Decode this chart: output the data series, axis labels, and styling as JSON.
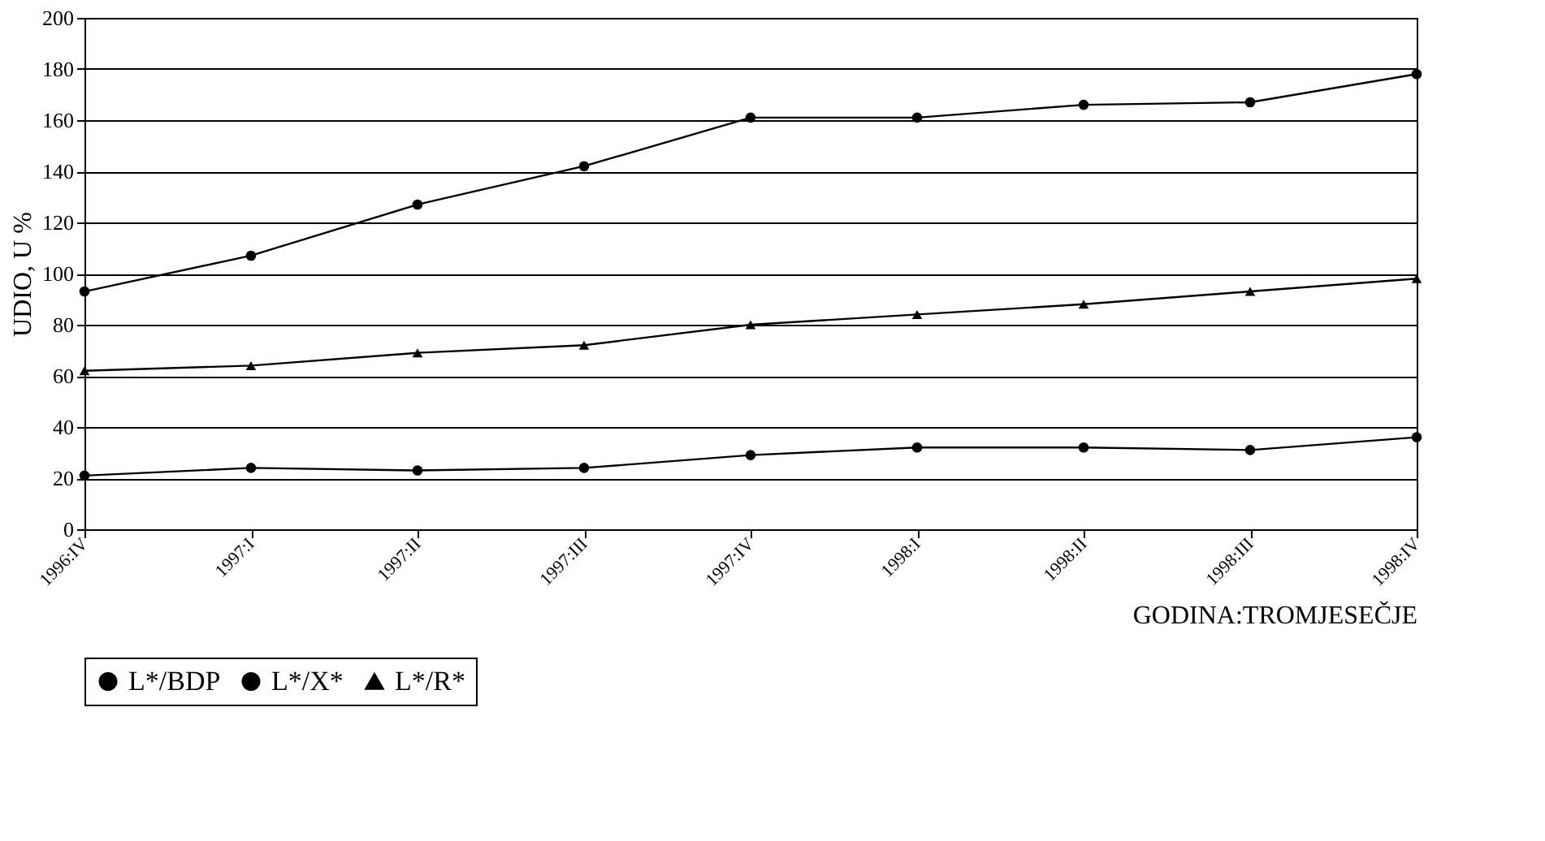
{
  "chart_data": {
    "type": "line",
    "xlabel": "GODINA:TROMJESEČJE",
    "ylabel": "UDIO, U %",
    "categories": [
      "1996:IV",
      "1997:I",
      "1997:II",
      "1997:III",
      "1997:IV",
      "1998:I",
      "1998:II",
      "1998:III",
      "1998:IV"
    ],
    "series": [
      {
        "name": "L*/BDP",
        "color": "#000000",
        "marker": "circle",
        "values": [
          21,
          24,
          23,
          24,
          29,
          32,
          32,
          31,
          36
        ]
      },
      {
        "name": "L*/X*",
        "color": "#000000",
        "marker": "circle",
        "values": [
          93,
          107,
          127,
          142,
          161,
          161,
          166,
          167,
          178
        ]
      },
      {
        "name": "L*/R*",
        "color": "#000000",
        "marker": "triangle",
        "values": [
          62,
          64,
          69,
          72,
          80,
          84,
          88,
          93,
          98
        ]
      }
    ],
    "ylim": [
      0,
      200
    ],
    "yticks": [
      0,
      20,
      40,
      60,
      80,
      100,
      120,
      140,
      160,
      180,
      200
    ],
    "grid": "y",
    "legend": "bottom",
    "line_style": "solid"
  }
}
